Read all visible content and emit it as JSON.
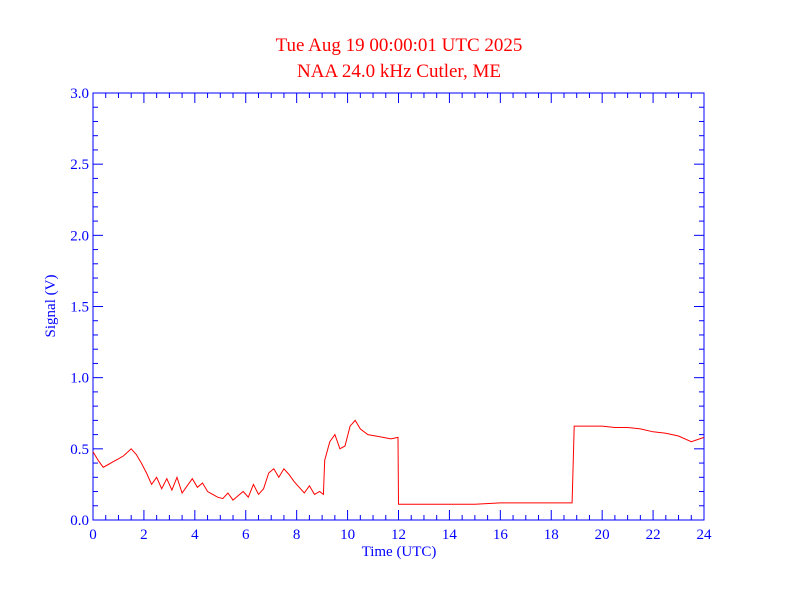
{
  "chart_data": {
    "type": "line",
    "title": "Tue Aug 19 00:00:01 UTC 2025",
    "subtitle": "NAA 24.0 kHz Cutler, ME",
    "xlabel": "Time (UTC)",
    "ylabel": "Signal (V)",
    "xlim": [
      0,
      24
    ],
    "ylim": [
      0,
      3.0
    ],
    "x_ticks": [
      "0",
      "2",
      "4",
      "6",
      "8",
      "10",
      "12",
      "14",
      "16",
      "18",
      "20",
      "22",
      "24"
    ],
    "y_ticks": [
      "0.0",
      "0.5",
      "1.0",
      "1.5",
      "2.0",
      "2.5",
      "3.0"
    ],
    "grid": false,
    "colors": {
      "axes": "#0000ff",
      "line": "#ff0000",
      "title": "#ff0000"
    },
    "series": [
      {
        "x": [
          0,
          0.2,
          0.4,
          0.6,
          0.8,
          1.0,
          1.2,
          1.5,
          1.7,
          1.9,
          2.1,
          2.3,
          2.5,
          2.7,
          2.9,
          3.1,
          3.3,
          3.5,
          3.7,
          3.9,
          4.1,
          4.3,
          4.5,
          4.7,
          4.9,
          5.1,
          5.3,
          5.5,
          5.7,
          5.9,
          6.1,
          6.3,
          6.5,
          6.7,
          6.9,
          7.1,
          7.3,
          7.5,
          7.7,
          7.9,
          8.1,
          8.3,
          8.5,
          8.7,
          8.9,
          9.05,
          9.1,
          9.3,
          9.5,
          9.7,
          9.9,
          10.1,
          10.3,
          10.5,
          10.8,
          11.1,
          11.4,
          11.7,
          11.98,
          12.0,
          12.3,
          13.0,
          14.0,
          15.0,
          16.0,
          17.0,
          18.0,
          18.8,
          18.82,
          18.9,
          19.5,
          20.0,
          20.5,
          21.0,
          21.5,
          22.0,
          22.5,
          23.0,
          23.5,
          24.0
        ],
        "y": [
          0.48,
          0.42,
          0.37,
          0.39,
          0.41,
          0.43,
          0.45,
          0.5,
          0.46,
          0.4,
          0.33,
          0.25,
          0.3,
          0.22,
          0.29,
          0.21,
          0.3,
          0.19,
          0.24,
          0.29,
          0.23,
          0.26,
          0.2,
          0.18,
          0.16,
          0.15,
          0.19,
          0.14,
          0.17,
          0.2,
          0.16,
          0.25,
          0.18,
          0.22,
          0.33,
          0.36,
          0.3,
          0.36,
          0.32,
          0.27,
          0.23,
          0.19,
          0.24,
          0.18,
          0.2,
          0.18,
          0.42,
          0.55,
          0.6,
          0.5,
          0.52,
          0.66,
          0.7,
          0.64,
          0.6,
          0.59,
          0.58,
          0.57,
          0.58,
          0.11,
          0.11,
          0.11,
          0.11,
          0.11,
          0.12,
          0.12,
          0.12,
          0.12,
          0.12,
          0.66,
          0.66,
          0.66,
          0.65,
          0.65,
          0.64,
          0.62,
          0.61,
          0.59,
          0.55,
          0.58
        ]
      }
    ]
  }
}
